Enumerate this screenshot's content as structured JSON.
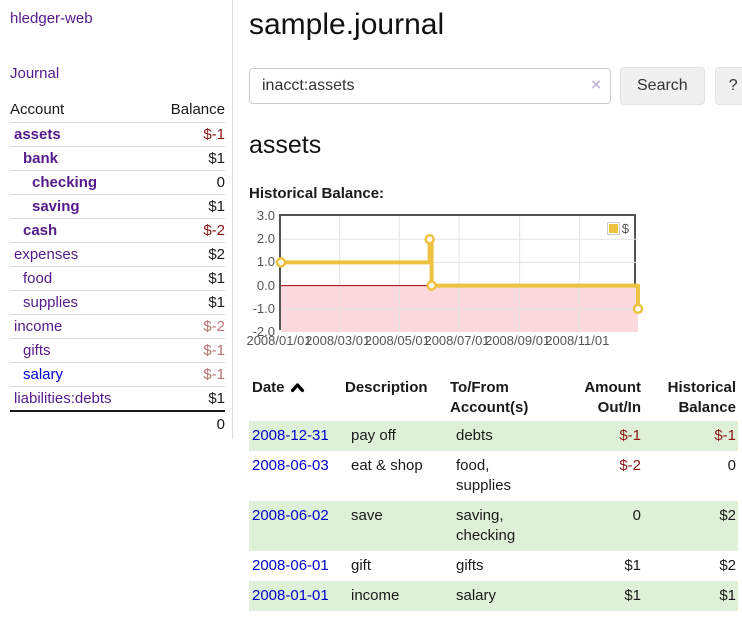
{
  "colors": {
    "accent_gold": "#EDC240",
    "link_purple": "#551A8B",
    "link_blue": "#0000D0",
    "negative_strong": "#8B1717",
    "negative_soft": "#BF7171",
    "stripe_green": "#DFF0D8",
    "negative_zone_pink": "#FBD9DC",
    "zero_line_red": "#A40000",
    "grid_gray": "#e3e3e3",
    "plot_border": "#545454"
  },
  "sidebar": {
    "brand": "hledger-web",
    "nav": [
      {
        "label": "Journal"
      }
    ],
    "table": {
      "headers": {
        "account": "Account",
        "balance": "Balance"
      },
      "accounts": [
        {
          "name": "assets",
          "depth": 1,
          "balance": "$-1",
          "emphasis": true,
          "negative": "strong"
        },
        {
          "name": "bank",
          "depth": 2,
          "balance": "$1",
          "emphasis": true
        },
        {
          "name": "checking",
          "depth": 3,
          "balance": "0",
          "emphasis": true
        },
        {
          "name": "saving",
          "depth": 3,
          "balance": "$1",
          "emphasis": true
        },
        {
          "name": "cash",
          "depth": 2,
          "balance": "$-2",
          "emphasis": true,
          "negative": "strong"
        },
        {
          "name": "expenses",
          "depth": 1,
          "balance": "$2"
        },
        {
          "name": "food",
          "depth": 2,
          "balance": "$1"
        },
        {
          "name": "supplies",
          "depth": 2,
          "balance": "$1"
        },
        {
          "name": "income",
          "depth": 1,
          "balance": "$-2",
          "negative": "soft"
        },
        {
          "name": "gifts",
          "depth": 2,
          "balance": "$-1",
          "negative": "soft"
        },
        {
          "name": "salary",
          "depth": 2,
          "balance": "$-1",
          "negative": "soft",
          "link_color": "blue"
        },
        {
          "name": "liabilities:debts",
          "depth": 1,
          "balance": "$1"
        }
      ],
      "total": "0"
    }
  },
  "main": {
    "title": "sample.journal",
    "search": {
      "value": "inacct:assets",
      "clear_label": "×",
      "search_button": "Search",
      "help_button": "?"
    },
    "account_heading": "assets",
    "chart_title": "Historical Balance:"
  },
  "chart_data": {
    "type": "line",
    "step": true,
    "title": "Historical Balance of assets",
    "series": [
      {
        "name": "$",
        "color": "#EDC240",
        "points": [
          {
            "date": "2008-01-01",
            "value": 1
          },
          {
            "date": "2008-06-01",
            "value": 2
          },
          {
            "date": "2008-06-03",
            "value": 0
          },
          {
            "date": "2008-12-31",
            "value": -1
          }
        ]
      }
    ],
    "xlim": [
      "2008-01-01",
      "2008-12-31"
    ],
    "ylim": [
      -2,
      3
    ],
    "yticks": [
      {
        "label": "3.0",
        "value": 3
      },
      {
        "label": "2.0",
        "value": 2
      },
      {
        "label": "1.0",
        "value": 1
      },
      {
        "label": "0.0",
        "value": 0
      },
      {
        "label": "-1.0",
        "value": -1
      },
      {
        "label": "-2.0",
        "value": -2
      }
    ],
    "xticks": [
      {
        "label": "2008/01/01",
        "date": "2008-01-01"
      },
      {
        "label": "2008/03/01",
        "date": "2008-03-01"
      },
      {
        "label": "2008/05/01",
        "date": "2008-05-01"
      },
      {
        "label": "2008/07/01",
        "date": "2008-07-01"
      },
      {
        "label": "2008/09/01",
        "date": "2008-09-01"
      },
      {
        "label": "2008/11/01",
        "date": "2008-11-01"
      }
    ],
    "legend": {
      "position": "top-right",
      "entries": [
        {
          "label": "$",
          "color": "#EDC240"
        }
      ]
    },
    "grid": true,
    "negative_region_shaded": true
  },
  "register": {
    "headers": {
      "date": "Date",
      "description": "Description",
      "accounts_line1": "To/From",
      "accounts_line2": "Account(s)",
      "amount_line1": "Amount",
      "amount_line2": "Out/In",
      "balance_line1": "Historical",
      "balance_line2": "Balance"
    },
    "sort": {
      "column": "date",
      "direction": "ascending"
    },
    "rows": [
      {
        "date": "2008-12-31",
        "description": "pay off",
        "accounts": "debts",
        "amount": "$-1",
        "amount_negative": true,
        "balance": "$-1",
        "balance_negative": true
      },
      {
        "date": "2008-06-03",
        "description": "eat & shop",
        "accounts": "food, supplies",
        "amount": "$-2",
        "amount_negative": true,
        "balance": "0",
        "balance_negative": false
      },
      {
        "date": "2008-06-02",
        "description": "save",
        "accounts": "saving,\nchecking",
        "amount": "0",
        "amount_negative": false,
        "balance": "$2",
        "balance_negative": false
      },
      {
        "date": "2008-06-01",
        "description": "gift",
        "accounts": "gifts",
        "amount": "$1",
        "amount_negative": false,
        "balance": "$2",
        "balance_negative": false
      },
      {
        "date": "2008-01-01",
        "description": "income",
        "accounts": "salary",
        "amount": "$1",
        "amount_negative": false,
        "balance": "$1",
        "balance_negative": false
      }
    ]
  }
}
